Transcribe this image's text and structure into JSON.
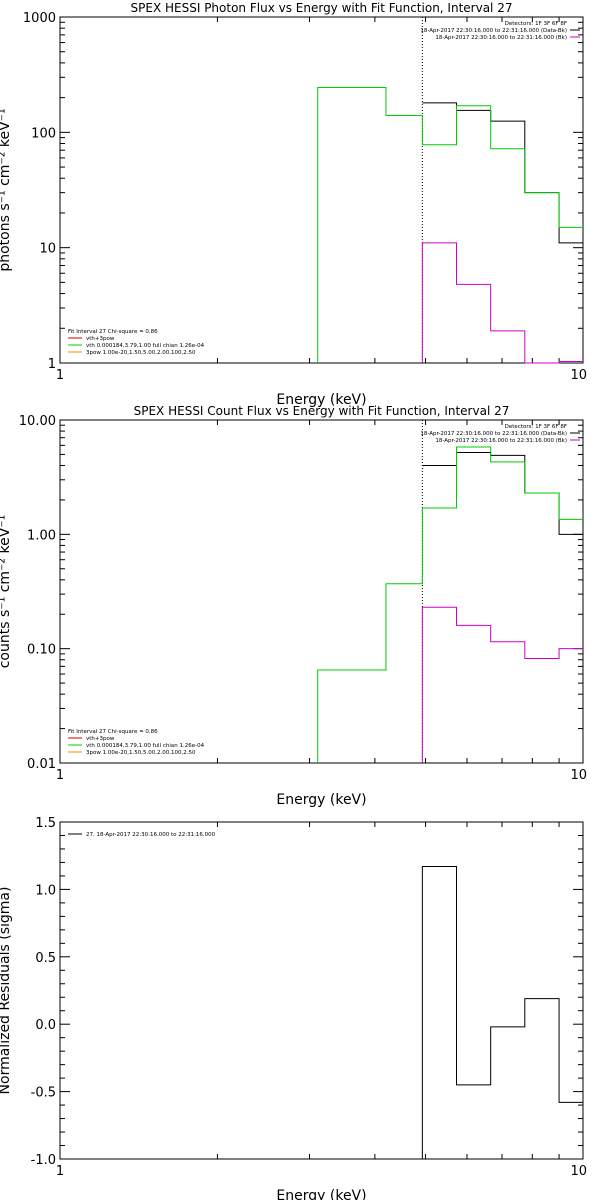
{
  "chart_data": [
    {
      "type": "line",
      "title": "SPEX HESSI Photon Flux vs Energy with Fit Function, Interval 27",
      "xlabel": "Energy (keV)",
      "ylabel": "photons s⁻¹ cm⁻² keV⁻¹",
      "xscale": "log",
      "yscale": "log",
      "xlim": [
        1,
        10
      ],
      "ylim": [
        1,
        1000
      ],
      "xticks": [
        1,
        10
      ],
      "xticklabels": [
        "1",
        "10"
      ],
      "yticks": [
        1,
        10,
        100,
        1000
      ],
      "yticklabels": [
        "1",
        "10",
        "100",
        "1000"
      ],
      "vline": 4.93,
      "info_lines": [
        "Detectors: 1F 3F 6F 8F",
        "18-Apr-2017 22:30:16.000 to 22:31:16.000 (Data-Bk)",
        "18-Apr-2017 22:30:16.000 to 22:31:16.000 (Bk)"
      ],
      "fit_lines": [
        "Fit Interval 27    Chi-square = 0.86",
        "vth+3pow",
        "vth 0.000184,3.79,1.00   full chian 1.26e-04",
        "3pow 1.00e-20,1.50,5.00,2.00,100,2.50"
      ],
      "series": [
        {
          "color": "#000000",
          "edges": [
            4.93,
            5.73,
            6.66,
            7.74,
            9.0,
            10.0
          ],
          "values": [
            180,
            155,
            125,
            30,
            11
          ]
        },
        {
          "color": "#00cc00",
          "edges": [
            3.11,
            3.62,
            4.2,
            4.93,
            5.73,
            6.66,
            7.74,
            9.0,
            10.0
          ],
          "values": [
            245,
            245,
            140,
            78,
            170,
            72,
            30,
            15
          ],
          "drop_to": 1
        },
        {
          "color": "#cc00cc",
          "edges": [
            4.93,
            5.73,
            6.66,
            7.74,
            9.0,
            10.0
          ],
          "values": [
            11,
            4.8,
            1.9,
            0.98,
            1.03
          ],
          "drop_to": 1
        }
      ]
    },
    {
      "type": "line",
      "title": "SPEX HESSI Count Flux vs Energy with Fit Function, Interval 27",
      "xlabel": "Energy (keV)",
      "ylabel": "counts s⁻¹ cm⁻² keV⁻¹",
      "xscale": "log",
      "yscale": "log",
      "xlim": [
        1,
        10
      ],
      "ylim": [
        0.01,
        10
      ],
      "xticks": [
        1,
        10
      ],
      "xticklabels": [
        "1",
        "10"
      ],
      "yticks": [
        0.01,
        0.1,
        1,
        10
      ],
      "yticklabels": [
        "0.01",
        "0.10",
        "1.00",
        "10.00"
      ],
      "vline": 4.93,
      "info_lines": [
        "Detectors: 1F 3F 6F 8F",
        "18-Apr-2017 22:30:16.000 to 22:31:16.000 (Data-Bk)",
        "18-Apr-2017 22:30:16.000 to 22:31:16.000 (Bk)"
      ],
      "fit_lines": [
        "Fit Interval 27    Chi-square = 0.86",
        "vth+3pow",
        "vth 0.000184,3.79,1.00   full chian 1.26e-04",
        "3pow 1.00e-20,1.50,5.00,2.00,100,2.50"
      ],
      "series": [
        {
          "color": "#000000",
          "edges": [
            4.93,
            5.73,
            6.66,
            7.74,
            9.0,
            10.0
          ],
          "values": [
            4.0,
            5.2,
            4.9,
            2.3,
            1.0
          ]
        },
        {
          "color": "#00cc00",
          "edges": [
            3.11,
            3.62,
            4.2,
            4.93,
            5.73,
            6.66,
            7.74,
            9.0,
            10.0
          ],
          "values": [
            0.065,
            0.065,
            0.37,
            1.7,
            5.8,
            4.3,
            2.3,
            1.35
          ],
          "drop_to": 0.01
        },
        {
          "color": "#cc00cc",
          "edges": [
            4.93,
            5.73,
            6.66,
            7.74,
            9.0,
            10.0
          ],
          "values": [
            0.23,
            0.16,
            0.115,
            0.082,
            0.1
          ],
          "drop_to": 0.01
        }
      ]
    },
    {
      "type": "line",
      "title": "",
      "xlabel": "Energy (keV)",
      "ylabel": "Normalized Residuals (sigma)",
      "xscale": "log",
      "yscale": "linear",
      "xlim": [
        1,
        10
      ],
      "ylim": [
        -1.0,
        1.5
      ],
      "xticks": [
        1,
        10
      ],
      "xticklabels": [
        "1",
        "10"
      ],
      "yticks": [
        -1.0,
        -0.5,
        0.0,
        0.5,
        1.0,
        1.5
      ],
      "yticklabels": [
        "-1.0",
        "-0.5",
        "0.0",
        "0.5",
        "1.0",
        "1.5"
      ],
      "legend": "27. 18-Apr-2017 22:30:16.000 to 22:31:16.000",
      "series": [
        {
          "color": "#000000",
          "edges": [
            4.93,
            5.73,
            6.66,
            7.74,
            9.0,
            10.0
          ],
          "values": [
            1.17,
            -0.45,
            -0.02,
            0.19,
            -0.58
          ],
          "drop_to": -1.0
        }
      ]
    }
  ]
}
